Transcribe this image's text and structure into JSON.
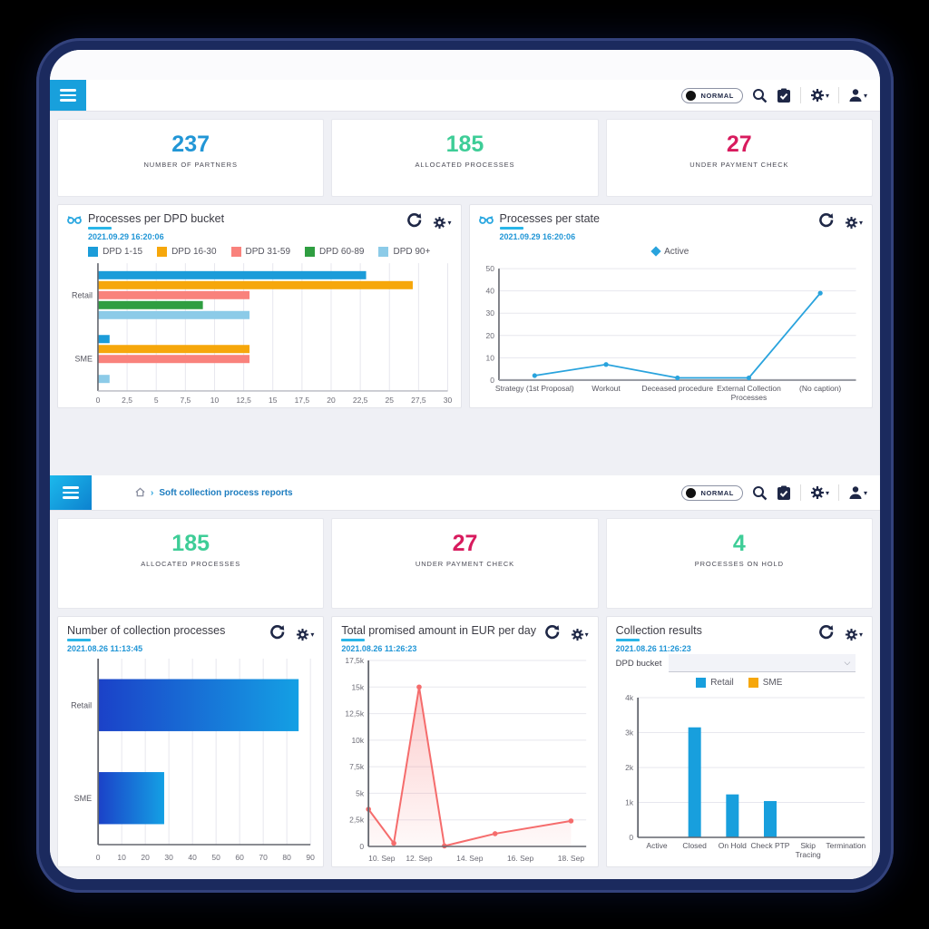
{
  "palette": {
    "accent_blue": "#2196d6",
    "mint_green": "#3ecd97",
    "pink": "#d81b5e",
    "navy_icons": "#1e2746",
    "frame_navy": "#1b2a5e",
    "burger_cyan": "#18a0dc",
    "timestamp_blue": "#2196d6"
  },
  "top": {
    "mode_label": "NORMAL",
    "stats": [
      {
        "value": "237",
        "label": "NUMBER OF PARTNERS",
        "color": "#2196d6"
      },
      {
        "value": "185",
        "label": "ALLOCATED PROCESSES",
        "color": "#3ecd97"
      },
      {
        "value": "27",
        "label": "UNDER PAYMENT CHECK",
        "color": "#d81b5e"
      }
    ]
  },
  "bottom": {
    "mode_label": "NORMAL",
    "breadcrumb": "Soft collection process reports",
    "stats": [
      {
        "value": "185",
        "label": "ALLOCATED PROCESSES",
        "color": "#3ecd97"
      },
      {
        "value": "27",
        "label": "UNDER PAYMENT CHECK",
        "color": "#d81b5e"
      },
      {
        "value": "4",
        "label": "PROCESSES ON HOLD",
        "color": "#3ecd97"
      }
    ]
  },
  "chart_data": [
    {
      "type": "barh-grouped",
      "title": "Processes per DPD bucket",
      "timestamp": "2021.09.29 16:20:06",
      "categories": [
        "Retail",
        "SME"
      ],
      "series": [
        {
          "name": "DPD 1-15",
          "color": "#1b9cd9",
          "values": [
            23,
            1
          ]
        },
        {
          "name": "DPD 16-30",
          "color": "#f6a70b",
          "values": [
            27,
            13
          ]
        },
        {
          "name": "DPD 31-59",
          "color": "#f9827c",
          "values": [
            13,
            13
          ]
        },
        {
          "name": "DPD 60-89",
          "color": "#2f9e41",
          "values": [
            9,
            0
          ]
        },
        {
          "name": "DPD 90+",
          "color": "#8ccbe8",
          "values": [
            13,
            1
          ]
        }
      ],
      "xlim": [
        0,
        30
      ],
      "xticks": [
        0,
        2.5,
        5,
        7.5,
        10,
        12.5,
        15,
        17.5,
        20,
        22.5,
        25,
        27.5,
        30
      ],
      "xtick_labels": [
        "0",
        "2,5",
        "5",
        "7,5",
        "10",
        "12,5",
        "15",
        "17,5",
        "20",
        "22,5",
        "25",
        "27,5",
        "30"
      ],
      "grid": true,
      "legend_position": "top"
    },
    {
      "type": "line",
      "title": "Processes per state",
      "timestamp": "2021.09.29 16:20:06",
      "legend_marker": "diamond",
      "legend_position": "top",
      "categories": [
        "Strategy (1st Proposal)",
        "Workout",
        "Deceased procedure",
        "External Collection\nProcesses",
        "(No caption)"
      ],
      "series": [
        {
          "name": "Active",
          "color": "#29a3dd",
          "values": [
            2,
            7,
            1,
            1,
            39
          ]
        }
      ],
      "ylim": [
        0,
        50
      ],
      "yticks": [
        0,
        10,
        20,
        30,
        40,
        50
      ],
      "grid": true
    },
    {
      "type": "barh",
      "title": "Number of collection processes",
      "timestamp": "2021.08.26 11:13:45",
      "categories": [
        "Retail",
        "SME"
      ],
      "values": [
        85,
        28
      ],
      "gradient": [
        "#1b41c8",
        "#14a0e4"
      ],
      "xlim": [
        0,
        90
      ],
      "xticks": [
        0,
        10,
        20,
        30,
        40,
        50,
        60,
        70,
        80,
        90
      ],
      "xtick_labels": [
        "0",
        "10",
        "20",
        "30",
        "40",
        "50",
        "60",
        "70",
        "80",
        "90"
      ],
      "grid": true
    },
    {
      "type": "line-x",
      "title": "Total promised amount in EUR per day",
      "timestamp": "2021.08.26 11:26:23",
      "color": "#f56c6c",
      "x": [
        10,
        11,
        12,
        13,
        15,
        18
      ],
      "values": [
        3500,
        300,
        15000,
        50,
        1200,
        2400
      ],
      "xlim": [
        10,
        18.6
      ],
      "xticks": [
        10,
        12,
        14,
        16,
        18
      ],
      "xtick_labels": [
        "10. Sep",
        "12. Sep",
        "14. Sep",
        "16. Sep",
        "18. Sep"
      ],
      "ylim": [
        0,
        17500
      ],
      "yticks": [
        0,
        2500,
        5000,
        7500,
        10000,
        12500,
        15000,
        17500
      ],
      "ytick_labels": [
        "0",
        "2,5k",
        "5k",
        "7,5k",
        "10k",
        "12,5k",
        "15k",
        "17,5k"
      ],
      "area_fill": true,
      "grid": true
    },
    {
      "type": "bar",
      "title": "Collection results",
      "timestamp": "2021.08.26 11:26:23",
      "filter_label": "DPD bucket",
      "filter_value": "",
      "legend_position": "top",
      "categories": [
        "Active",
        "Closed",
        "On Hold",
        "Check PTP",
        "Skip\nTracing",
        "Termination"
      ],
      "series": [
        {
          "name": "Retail",
          "color": "#189fdd",
          "values": [
            0,
            3150,
            1230,
            1040,
            0,
            0
          ]
        },
        {
          "name": "SME",
          "color": "#f6a70b",
          "values": [
            0,
            0,
            0,
            0,
            0,
            0
          ]
        }
      ],
      "ylim": [
        0,
        4000
      ],
      "yticks": [
        0,
        1000,
        2000,
        3000,
        4000
      ],
      "ytick_labels": [
        "0",
        "1k",
        "2k",
        "3k",
        "4k"
      ],
      "grid": true
    }
  ]
}
